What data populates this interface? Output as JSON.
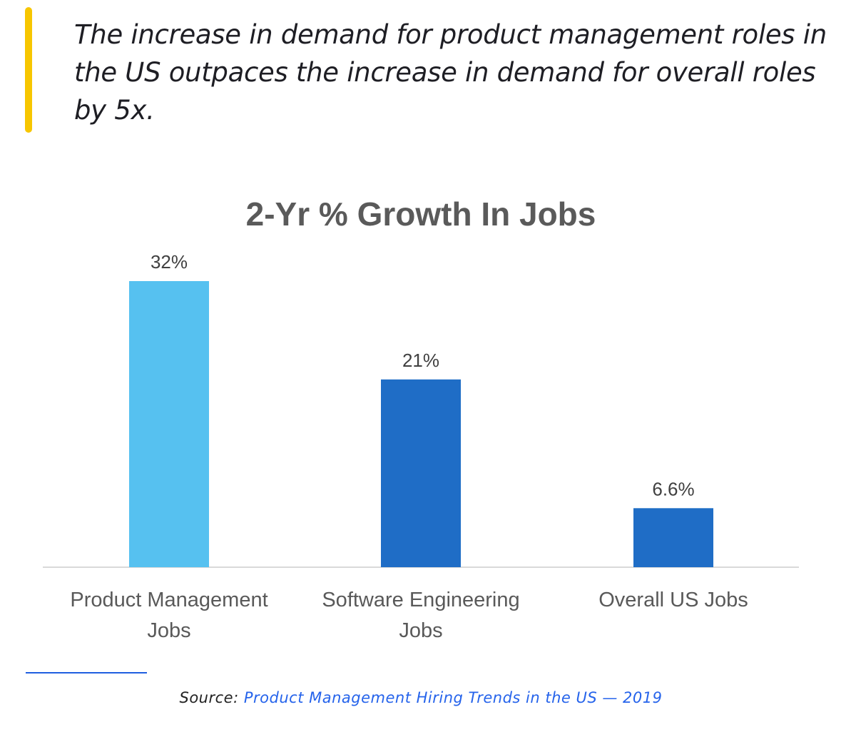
{
  "quote": {
    "text": "The increase in demand for product management roles in the US outpaces the increase in demand for overall roles by 5x.",
    "accent_color": "#f7c600"
  },
  "chart_data": {
    "type": "bar",
    "title": "2-Yr % Growth In Jobs",
    "categories": [
      "Product Management Jobs",
      "Software Engineering Jobs",
      "Overall US Jobs"
    ],
    "category_lines": [
      [
        "Product Management",
        "Jobs"
      ],
      [
        "Software Engineering",
        "Jobs"
      ],
      [
        "Overall US Jobs"
      ]
    ],
    "values": [
      32,
      21,
      6.6
    ],
    "data_labels": [
      "32%",
      "21%",
      "6.6%"
    ],
    "colors": [
      "#56c1f0",
      "#1f6dc6",
      "#1f6dc6"
    ],
    "xlabel": "",
    "ylabel": "",
    "ylim": [
      0,
      32
    ],
    "grid": false,
    "legend": "none"
  },
  "source": {
    "prefix": "Source:",
    "link_text": "Product Management Hiring Trends in the US — 2019"
  }
}
